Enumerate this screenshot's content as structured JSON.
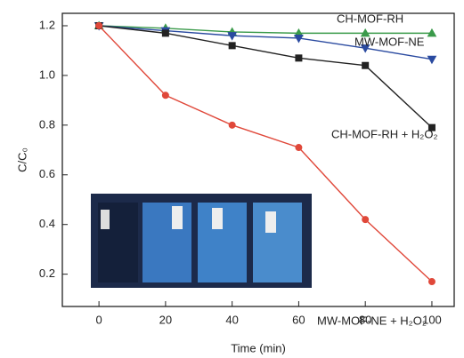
{
  "chart_data": {
    "type": "line",
    "xlabel": "Time (min)",
    "ylabel": "C/C₀",
    "x": [
      0,
      20,
      40,
      60,
      80,
      100
    ],
    "series": [
      {
        "name": "CH-MOF-RH",
        "color": "#3a9a4a",
        "marker": "triangle-up",
        "values": [
          1.2,
          1.19,
          1.175,
          1.17,
          1.17,
          1.17
        ]
      },
      {
        "name": "MW-MOF-NE",
        "color": "#2a4aa0",
        "marker": "triangle-down",
        "values": [
          1.2,
          1.18,
          1.16,
          1.15,
          1.11,
          1.065
        ]
      },
      {
        "name": "CH-MOF-RH + H₂O₂",
        "color": "#222222",
        "marker": "square",
        "values": [
          1.2,
          1.17,
          1.12,
          1.07,
          1.04,
          0.79
        ]
      },
      {
        "name": "MW-MOF-NE + H₂O₂",
        "color": "#e0483a",
        "marker": "circle",
        "values": [
          1.2,
          0.92,
          0.8,
          0.71,
          0.42,
          0.17
        ]
      }
    ],
    "xlim": [
      -11,
      106.7
    ],
    "ylim": [
      0.07,
      1.25
    ],
    "xticks": [
      0,
      20,
      40,
      60,
      80,
      100
    ],
    "yticks": [
      0.2,
      0.4,
      0.6,
      0.8,
      {
        "value": 1,
        "label": "1.0"
      },
      1.2
    ]
  }
}
